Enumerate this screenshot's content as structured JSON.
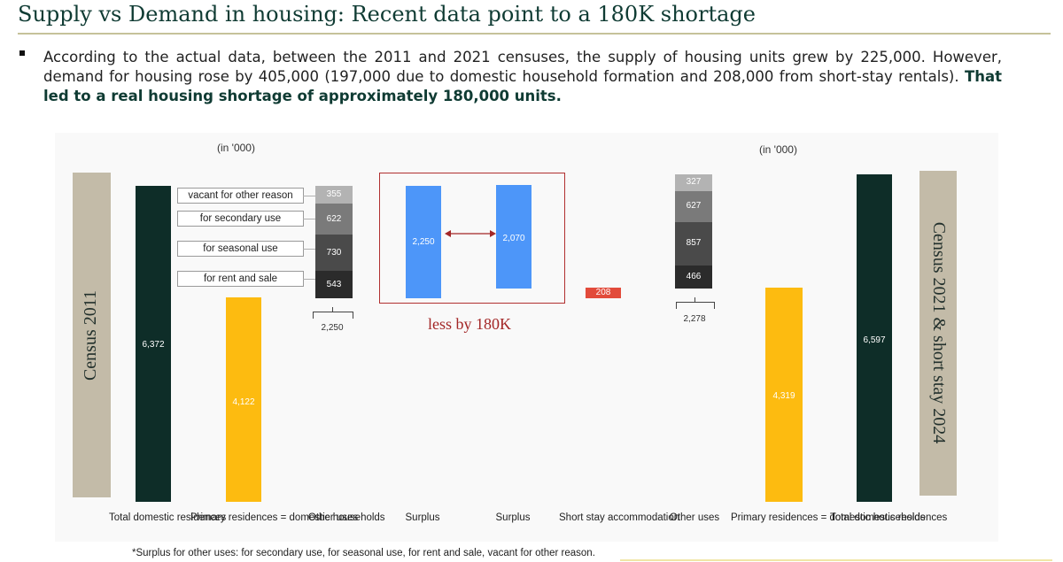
{
  "header": {
    "title": "Supply vs Demand in housing: Recent data point to a 180K shortage",
    "intro_plain": "According to the actual data, between the 2011 and 2021 censuses, the supply of housing units grew by 225,000. However, demand for housing rose by 405,000 (197,000 due to domestic household formation and 208,000 from short-stay rentals).",
    "intro_bold": "That led to a real housing shortage of approximately 180,000 units."
  },
  "chart_data": {
    "type": "bar",
    "unit_note_left": "(in '000)",
    "unit_note_right": "(in '000)",
    "left_label": "Census 2011",
    "right_label": "Census 2021 & short stay 2024",
    "categories": [
      "Total domestic residences",
      "Primary residences = domestic households",
      "Other uses",
      "Surplus",
      "Surplus",
      "Short stay accommodation",
      "Other uses",
      "Primary residences = domestic households",
      "Total domestic residences"
    ],
    "totals_2011": {
      "total": 6372,
      "primary": 4122
    },
    "other_uses_2011": {
      "segments": [
        {
          "name": "for rent and sale",
          "value": 543
        },
        {
          "name": "for seasonal use",
          "value": 730
        },
        {
          "name": "for secondary use",
          "value": 622
        },
        {
          "name": "vacant for other reason",
          "value": 355
        }
      ],
      "brace_total": "2,250"
    },
    "surplus": {
      "left": 2250,
      "right": 2070,
      "difference_label": "less by 180K"
    },
    "short_stay": 208,
    "other_uses_2021": {
      "segments": [
        {
          "value": 466
        },
        {
          "value": 857
        },
        {
          "value": 627
        },
        {
          "value": 327
        }
      ],
      "brace_total": "2,278"
    },
    "totals_2021": {
      "total": 6597,
      "primary": 4319
    },
    "colors": {
      "total": "#0e2d28",
      "primary": "#fdbb10",
      "surplus": "#4d96f9",
      "short_stay": "#e24b3b",
      "seg1": "#2b2b2b",
      "seg2": "#4a4a4a",
      "seg3": "#7a7a7a",
      "seg4": "#b3b3b3",
      "side_band": "#c3bba8"
    },
    "footnote": "*Surplus for other uses: for secondary use, for seasonal use, for rent and sale, vacant for other reason."
  }
}
